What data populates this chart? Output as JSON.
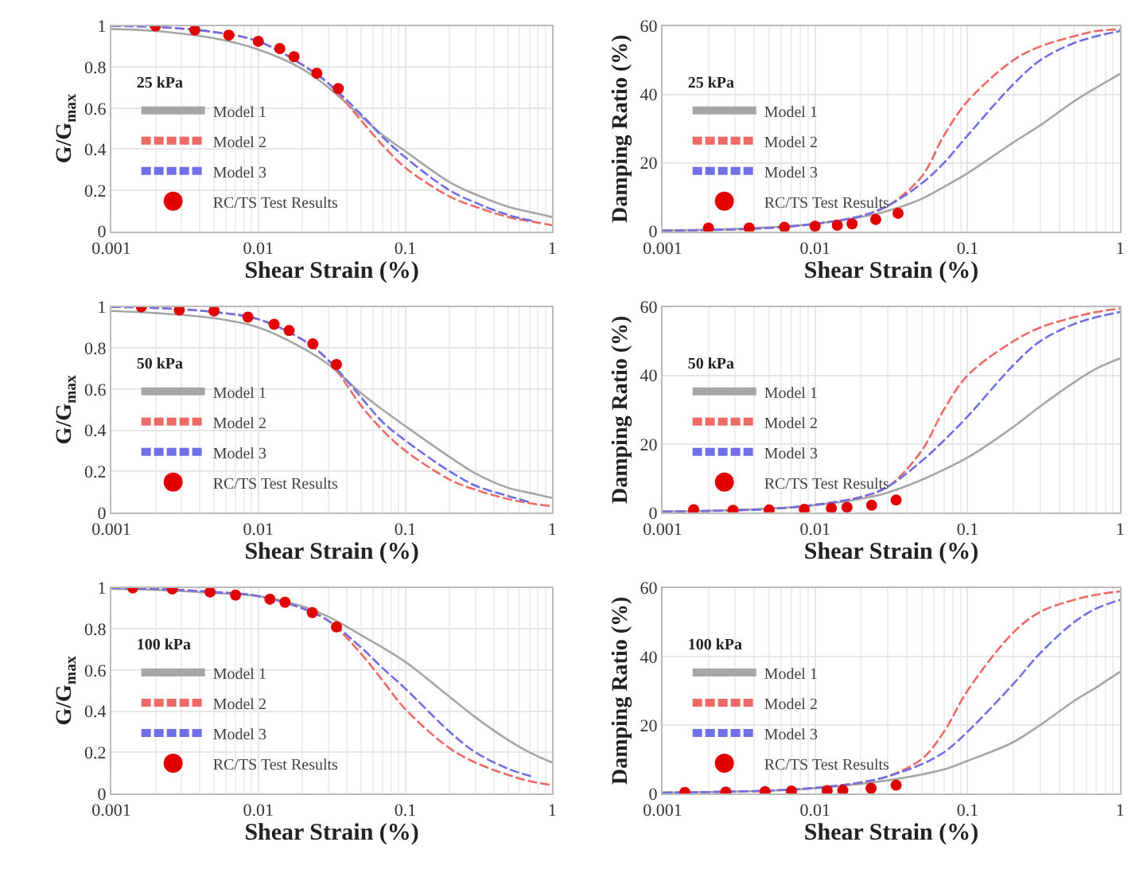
{
  "chart_data": [
    {
      "type": "line",
      "legend_title": "25 kPa",
      "xlabel": "Shear Strain (%)",
      "ylabel": "G/G$_{max}$",
      "log": "x",
      "grid": true,
      "legend": "left",
      "xlim": [
        0.001,
        1
      ],
      "xticks": [
        0.001,
        0.01,
        0.1,
        1
      ],
      "ylim": [
        0,
        1
      ],
      "yticks": [
        0,
        0.2,
        0.4,
        0.6,
        0.8,
        1
      ],
      "x": [
        0.001,
        0.002,
        0.005,
        0.01,
        0.02,
        0.03,
        0.05,
        0.07,
        0.1,
        0.2,
        0.3,
        0.5,
        0.7,
        1
      ],
      "series": [
        {
          "name": "Model 1",
          "color": "#a6a6a6",
          "line_style": "solid",
          "values": [
            0.985,
            0.975,
            0.94,
            0.885,
            0.79,
            0.7,
            0.56,
            0.47,
            0.39,
            0.24,
            0.18,
            0.12,
            0.095,
            0.07
          ]
        },
        {
          "name": "Model 2",
          "color": "#ee6a66",
          "line_style": "dashed",
          "values": [
            1.0,
            0.995,
            0.97,
            0.925,
            0.81,
            0.72,
            0.54,
            0.42,
            0.31,
            0.17,
            0.12,
            0.07,
            0.05,
            0.03
          ]
        },
        {
          "name": "Model 3",
          "color": "#6f6fe6",
          "line_style": "dashed",
          "x": [
            0.001,
            0.002,
            0.005,
            0.01,
            0.02,
            0.03,
            0.05,
            0.07,
            0.1,
            0.2,
            0.3,
            0.5,
            0.75
          ],
          "values": [
            1.0,
            0.995,
            0.97,
            0.925,
            0.81,
            0.72,
            0.57,
            0.46,
            0.36,
            0.2,
            0.14,
            0.08,
            0.05
          ]
        },
        {
          "name": "RC/TS Test Results",
          "type": "scatter",
          "marker": "circle",
          "color": "#e00000",
          "x": [
            0.002,
            0.0037,
            0.0063,
            0.01,
            0.014,
            0.0175,
            0.025,
            0.035
          ],
          "values": [
            1.0,
            0.98,
            0.955,
            0.925,
            0.89,
            0.85,
            0.77,
            0.695
          ]
        }
      ]
    },
    {
      "type": "line",
      "legend_title": "25 kPa",
      "xlabel": "Shear Strain (%)",
      "ylabel": "Damping Ratio (%)",
      "log": "x",
      "grid": true,
      "legend": "left",
      "xlim": [
        0.001,
        1
      ],
      "xticks": [
        0.001,
        0.01,
        0.1,
        1
      ],
      "ylim": [
        0,
        60
      ],
      "yticks": [
        0,
        20,
        40,
        60
      ],
      "x": [
        0.001,
        0.002,
        0.005,
        0.01,
        0.02,
        0.03,
        0.05,
        0.07,
        0.1,
        0.2,
        0.3,
        0.5,
        0.7,
        1
      ],
      "series": [
        {
          "name": "Model 1",
          "color": "#a6a6a6",
          "line_style": "solid",
          "values": [
            0.3,
            0.5,
            1.2,
            2.2,
            4.2,
            6,
            9.5,
            13,
            17,
            26,
            31,
            38,
            42,
            46
          ]
        },
        {
          "name": "Model 2",
          "color": "#ee6a66",
          "line_style": "dashed",
          "values": [
            0.2,
            0.4,
            1.0,
            2.2,
            4.5,
            7.5,
            16,
            28,
            38,
            50,
            54,
            57,
            58.5,
            59
          ]
        },
        {
          "name": "Model 3",
          "color": "#6f6fe6",
          "line_style": "dashed",
          "values": [
            0.2,
            0.4,
            1.0,
            2.2,
            4.5,
            7.5,
            14,
            20,
            28,
            43,
            50,
            55,
            57,
            58.5
          ]
        },
        {
          "name": "RC/TS Test Results",
          "type": "scatter",
          "marker": "circle",
          "color": "#e00000",
          "x": [
            0.002,
            0.0037,
            0.0063,
            0.01,
            0.014,
            0.0175,
            0.025,
            0.035
          ],
          "values": [
            1.0,
            1.0,
            1.2,
            1.5,
            1.8,
            2.2,
            3.5,
            5.3
          ]
        }
      ]
    },
    {
      "type": "line",
      "legend_title": "50 kPa",
      "xlabel": "Shear Strain (%)",
      "ylabel": "G/G$_{max}$",
      "log": "x",
      "grid": true,
      "legend": "left",
      "xlim": [
        0.001,
        1
      ],
      "xticks": [
        0.001,
        0.01,
        0.1,
        1
      ],
      "ylim": [
        0,
        1
      ],
      "yticks": [
        0,
        0.2,
        0.4,
        0.6,
        0.8,
        1
      ],
      "x": [
        0.001,
        0.002,
        0.005,
        0.01,
        0.02,
        0.03,
        0.05,
        0.07,
        0.1,
        0.2,
        0.3,
        0.5,
        0.7,
        1
      ],
      "series": [
        {
          "name": "Model 1",
          "color": "#a6a6a6",
          "line_style": "solid",
          "values": [
            0.98,
            0.97,
            0.945,
            0.9,
            0.8,
            0.72,
            0.58,
            0.5,
            0.42,
            0.27,
            0.19,
            0.12,
            0.095,
            0.07
          ]
        },
        {
          "name": "Model 2",
          "color": "#ee6a66",
          "line_style": "dashed",
          "values": [
            1.0,
            0.995,
            0.975,
            0.94,
            0.84,
            0.74,
            0.52,
            0.4,
            0.3,
            0.16,
            0.11,
            0.065,
            0.045,
            0.03
          ]
        },
        {
          "name": "Model 3",
          "color": "#6f6fe6",
          "line_style": "dashed",
          "x": [
            0.001,
            0.002,
            0.005,
            0.01,
            0.02,
            0.03,
            0.05,
            0.07,
            0.1,
            0.2,
            0.3,
            0.5,
            0.7
          ],
          "values": [
            1.0,
            0.995,
            0.975,
            0.94,
            0.84,
            0.74,
            0.56,
            0.44,
            0.35,
            0.2,
            0.13,
            0.08,
            0.05
          ]
        },
        {
          "name": "RC/TS Test Results",
          "type": "scatter",
          "marker": "circle",
          "color": "#e00000",
          "x": [
            0.0016,
            0.0029,
            0.005,
            0.0085,
            0.0128,
            0.0162,
            0.0235,
            0.034
          ],
          "values": [
            1.0,
            0.985,
            0.98,
            0.95,
            0.915,
            0.885,
            0.82,
            0.72
          ]
        }
      ]
    },
    {
      "type": "line",
      "legend_title": "50 kPa",
      "xlabel": "Shear Strain (%)",
      "ylabel": "Damping Ratio (%)",
      "log": "x",
      "grid": true,
      "legend": "left",
      "xlim": [
        0.001,
        1
      ],
      "xticks": [
        0.001,
        0.01,
        0.1,
        1
      ],
      "ylim": [
        0,
        60
      ],
      "yticks": [
        0,
        20,
        40,
        60
      ],
      "x": [
        0.001,
        0.002,
        0.005,
        0.01,
        0.02,
        0.03,
        0.05,
        0.07,
        0.1,
        0.2,
        0.3,
        0.5,
        0.7,
        1
      ],
      "series": [
        {
          "name": "Model 1",
          "color": "#a6a6a6",
          "line_style": "solid",
          "values": [
            0.3,
            0.5,
            1.1,
            2.1,
            4,
            5.8,
            9.5,
            12.5,
            16,
            25,
            31,
            38,
            42,
            45
          ]
        },
        {
          "name": "Model 2",
          "color": "#ee6a66",
          "line_style": "dashed",
          "values": [
            0.2,
            0.4,
            1.0,
            2.2,
            4.5,
            7.5,
            18,
            30,
            40,
            50,
            54,
            57,
            58.5,
            59.5
          ]
        },
        {
          "name": "Model 3",
          "color": "#6f6fe6",
          "line_style": "dashed",
          "values": [
            0.2,
            0.4,
            1.0,
            2.2,
            4.5,
            7.5,
            15,
            21,
            28,
            43,
            50,
            55,
            57,
            58.5
          ]
        },
        {
          "name": "RC/TS Test Results",
          "type": "scatter",
          "marker": "circle",
          "color": "#e00000",
          "x": [
            0.0016,
            0.0029,
            0.005,
            0.0085,
            0.0128,
            0.0162,
            0.0235,
            0.034
          ],
          "values": [
            0.8,
            0.6,
            0.7,
            0.9,
            1.2,
            1.5,
            2.1,
            3.6
          ]
        }
      ]
    },
    {
      "type": "line",
      "legend_title": "100 kPa",
      "xlabel": "Shear Strain (%)",
      "ylabel": "G/G$_{max}$",
      "log": "x",
      "grid": true,
      "legend": "left",
      "xlim": [
        0.001,
        1
      ],
      "xticks": [
        0.001,
        0.01,
        0.1,
        1
      ],
      "ylim": [
        0,
        1
      ],
      "yticks": [
        0,
        0.2,
        0.4,
        0.6,
        0.8,
        1
      ],
      "x": [
        0.001,
        0.002,
        0.005,
        0.01,
        0.02,
        0.03,
        0.05,
        0.07,
        0.1,
        0.2,
        0.3,
        0.5,
        0.7,
        1
      ],
      "series": [
        {
          "name": "Model 1",
          "color": "#a6a6a6",
          "line_style": "solid",
          "values": [
            0.995,
            0.99,
            0.975,
            0.96,
            0.91,
            0.86,
            0.77,
            0.71,
            0.64,
            0.47,
            0.37,
            0.26,
            0.2,
            0.15
          ]
        },
        {
          "name": "Model 2",
          "color": "#ee6a66",
          "line_style": "dashed",
          "values": [
            1.0,
            0.995,
            0.98,
            0.96,
            0.9,
            0.84,
            0.68,
            0.55,
            0.41,
            0.22,
            0.15,
            0.09,
            0.06,
            0.04
          ]
        },
        {
          "name": "Model 3",
          "color": "#6f6fe6",
          "line_style": "dashed",
          "x": [
            0.001,
            0.002,
            0.005,
            0.01,
            0.02,
            0.03,
            0.05,
            0.07,
            0.1,
            0.2,
            0.3,
            0.5,
            0.75
          ],
          "values": [
            1.0,
            0.995,
            0.98,
            0.96,
            0.9,
            0.84,
            0.71,
            0.61,
            0.51,
            0.3,
            0.2,
            0.12,
            0.08
          ]
        },
        {
          "name": "RC/TS Test Results",
          "type": "scatter",
          "marker": "circle",
          "color": "#e00000",
          "x": [
            0.0014,
            0.0026,
            0.0047,
            0.007,
            0.012,
            0.0152,
            0.0233,
            0.034
          ],
          "values": [
            1.0,
            0.995,
            0.98,
            0.965,
            0.945,
            0.93,
            0.88,
            0.81
          ]
        }
      ]
    },
    {
      "type": "line",
      "legend_title": "100 kPa",
      "xlabel": "Shear Strain (%)",
      "ylabel": "Damping Ratio (%)",
      "log": "x",
      "grid": true,
      "legend": "left",
      "xlim": [
        0.001,
        1
      ],
      "xticks": [
        0.001,
        0.01,
        0.1,
        1
      ],
      "ylim": [
        0,
        60
      ],
      "yticks": [
        0,
        20,
        40,
        60
      ],
      "x": [
        0.001,
        0.002,
        0.005,
        0.01,
        0.02,
        0.03,
        0.05,
        0.07,
        0.1,
        0.2,
        0.3,
        0.5,
        0.7,
        1
      ],
      "series": [
        {
          "name": "Model 1",
          "color": "#a6a6a6",
          "line_style": "solid",
          "values": [
            0.2,
            0.4,
            0.8,
            1.5,
            2.8,
            3.8,
            5.5,
            7,
            9.5,
            15,
            20,
            27,
            31,
            35.5
          ]
        },
        {
          "name": "Model 2",
          "color": "#ee6a66",
          "line_style": "dashed",
          "values": [
            0.2,
            0.4,
            0.8,
            1.6,
            3.2,
            5,
            10,
            18,
            30,
            47,
            53,
            56.5,
            58,
            59
          ]
        },
        {
          "name": "Model 3",
          "color": "#6f6fe6",
          "line_style": "dashed",
          "values": [
            0.2,
            0.4,
            0.8,
            1.6,
            3.2,
            5,
            8.5,
            12,
            18,
            32,
            41,
            50,
            54,
            56.5
          ]
        },
        {
          "name": "RC/TS Test Results",
          "type": "scatter",
          "marker": "circle",
          "color": "#e00000",
          "x": [
            0.0014,
            0.0026,
            0.0047,
            0.007,
            0.012,
            0.0152,
            0.0233,
            0.034
          ],
          "values": [
            0.3,
            0.4,
            0.5,
            0.7,
            0.8,
            0.9,
            1.5,
            2.4
          ]
        }
      ]
    }
  ]
}
